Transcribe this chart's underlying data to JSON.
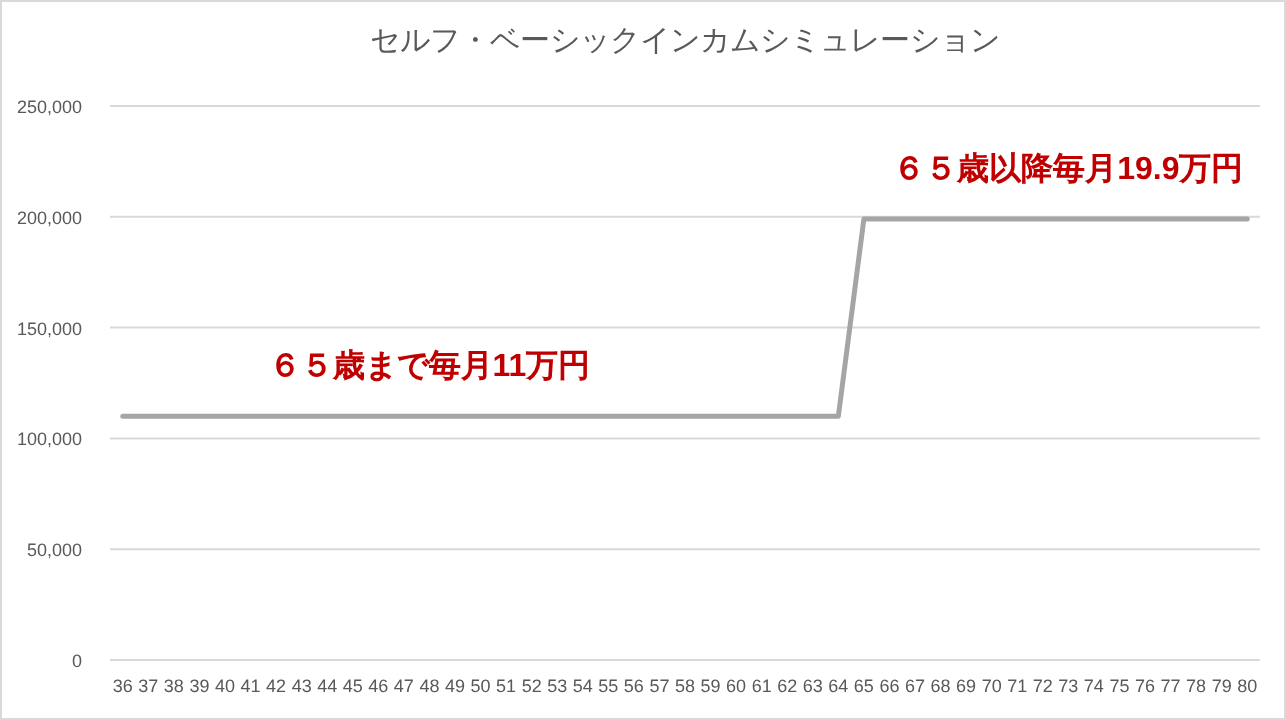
{
  "chart_data": {
    "type": "line",
    "title": "セルフ・ベーシックインカムシミュレーション",
    "categories": [
      "36",
      "37",
      "38",
      "39",
      "40",
      "41",
      "42",
      "43",
      "44",
      "45",
      "46",
      "47",
      "48",
      "49",
      "50",
      "51",
      "52",
      "53",
      "54",
      "55",
      "56",
      "57",
      "58",
      "59",
      "60",
      "61",
      "62",
      "63",
      "64",
      "65",
      "66",
      "67",
      "68",
      "69",
      "70",
      "71",
      "72",
      "73",
      "74",
      "75",
      "76",
      "77",
      "78",
      "79",
      "80"
    ],
    "series": [
      {
        "color": "#a5a5a5",
        "values": [
          110000,
          110000,
          110000,
          110000,
          110000,
          110000,
          110000,
          110000,
          110000,
          110000,
          110000,
          110000,
          110000,
          110000,
          110000,
          110000,
          110000,
          110000,
          110000,
          110000,
          110000,
          110000,
          110000,
          110000,
          110000,
          110000,
          110000,
          110000,
          110000,
          199000,
          199000,
          199000,
          199000,
          199000,
          199000,
          199000,
          199000,
          199000,
          199000,
          199000,
          199000,
          199000,
          199000,
          199000,
          199000
        ]
      }
    ],
    "ylim": [
      0,
      250000
    ],
    "yticks": [
      {
        "value": 0,
        "label": "0"
      },
      {
        "value": 50000,
        "label": "50,000"
      },
      {
        "value": 100000,
        "label": "100,000"
      },
      {
        "value": 150000,
        "label": "150,000"
      },
      {
        "value": 200000,
        "label": "200,000"
      },
      {
        "value": 250000,
        "label": "250,000"
      }
    ],
    "grid": "y",
    "marker": "none",
    "line_style": "solid",
    "annotations": [
      {
        "text": "６５歳まで毎月11万円",
        "x": "48",
        "y": 110000
      },
      {
        "text": "６５歳以降毎月19.9万円",
        "x": "73",
        "y": 199000
      }
    ]
  }
}
